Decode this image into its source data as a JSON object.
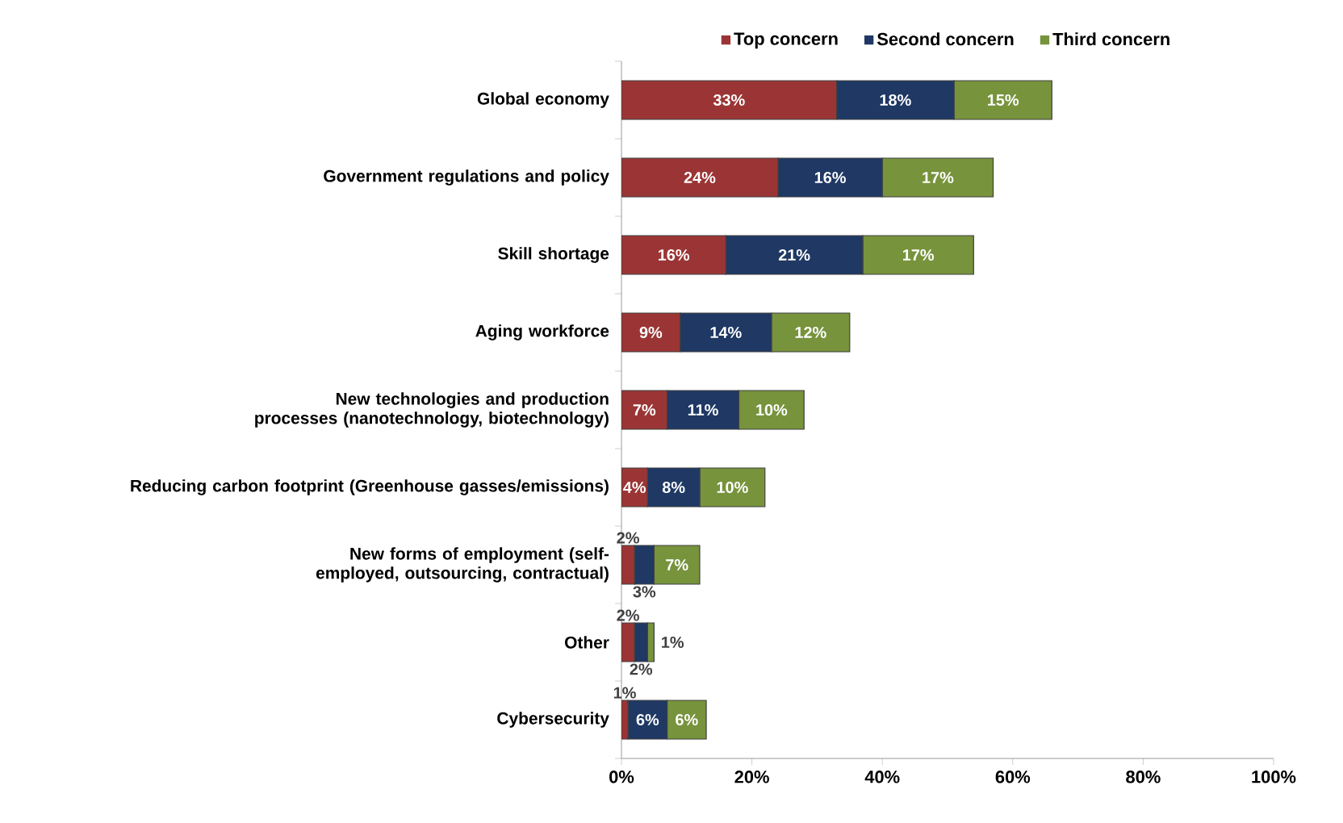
{
  "chart_data": {
    "type": "bar",
    "orientation": "horizontal",
    "stacked": true,
    "categories": [
      "Global economy",
      "Government regulations and policy",
      "Skill shortage",
      "Aging workforce",
      "New technologies and production processes (nanotechnology, biotechnology)",
      "Reducing carbon footprint (Greenhouse gasses/emissions)",
      "New forms of employment (self-employed, outsourcing, contractual)",
      "Other",
      "Cybersecurity"
    ],
    "series": [
      {
        "name": "Top concern",
        "color": "#9b3535",
        "values": [
          33,
          24,
          16,
          9,
          7,
          4,
          2,
          2,
          1
        ],
        "value_labels": [
          "33%",
          "24%",
          "16%",
          "9%",
          "7%",
          "4%",
          "2%",
          "2%",
          "1%"
        ]
      },
      {
        "name": "Second concern",
        "color": "#1f3864",
        "values": [
          18,
          16,
          21,
          14,
          11,
          8,
          3,
          2,
          6
        ],
        "value_labels": [
          "18%",
          "16%",
          "21%",
          "14%",
          "11%",
          "8%",
          "3%",
          "2%",
          "6%"
        ]
      },
      {
        "name": "Third concern",
        "color": "#77933c",
        "values": [
          15,
          17,
          17,
          12,
          10,
          10,
          7,
          1,
          6
        ],
        "value_labels": [
          "15%",
          "17%",
          "17%",
          "12%",
          "10%",
          "10%",
          "7%",
          "1%",
          "6%"
        ]
      }
    ],
    "xlim": [
      0,
      100
    ],
    "xticks": [
      {
        "value": 0,
        "label": "0%"
      },
      {
        "value": 20,
        "label": "20%"
      },
      {
        "value": 40,
        "label": "40%"
      },
      {
        "value": 60,
        "label": "60%"
      },
      {
        "value": 80,
        "label": "80%"
      },
      {
        "value": 100,
        "label": "100%"
      }
    ],
    "grid": false,
    "legend": "top"
  }
}
